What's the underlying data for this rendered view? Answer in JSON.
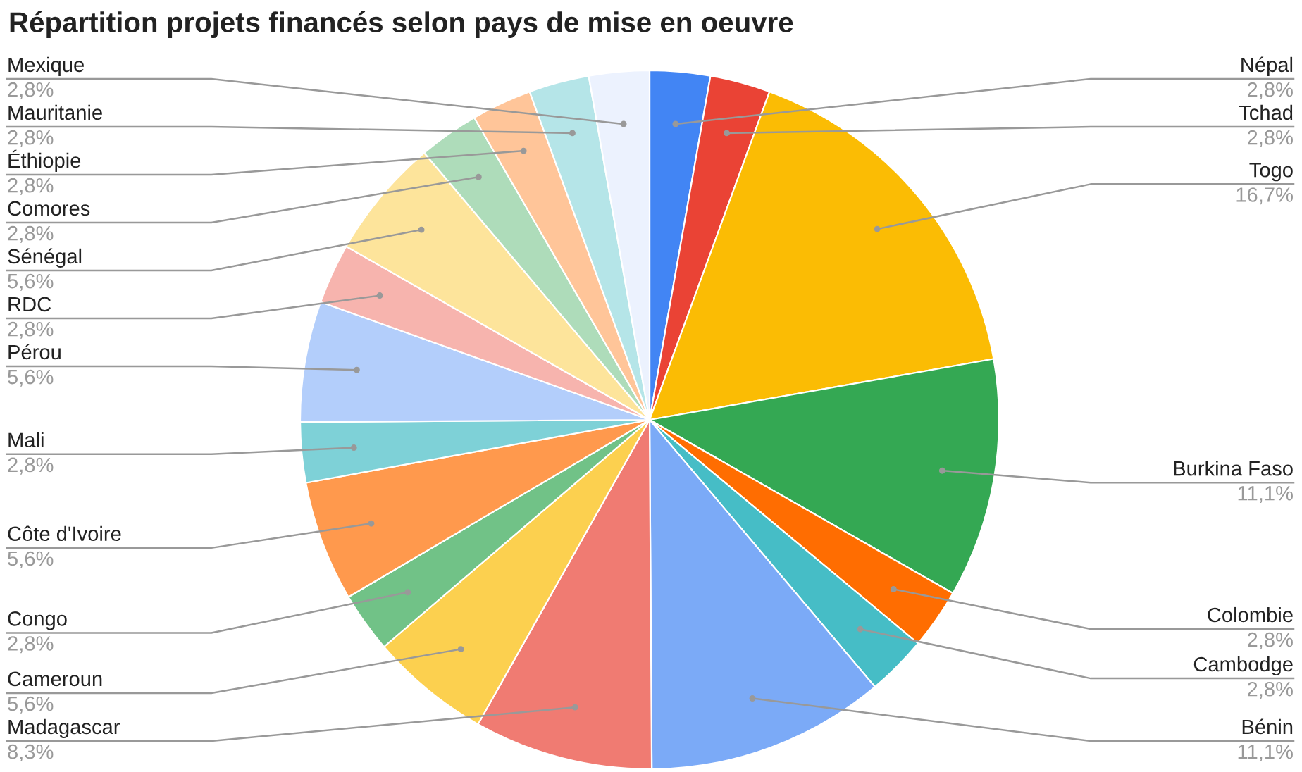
{
  "chart_data": {
    "type": "pie",
    "title": "Répartition projets financés selon pays de mise en oeuvre",
    "categories": [
      "Népal",
      "Tchad",
      "Togo",
      "Burkina Faso",
      "Colombie",
      "Cambodge",
      "Bénin",
      "Madagascar",
      "Cameroun",
      "Congo",
      "Côte d'Ivoire",
      "Mali",
      "Pérou",
      "RDC",
      "Sénégal",
      "Comores",
      "Éthiopie",
      "Mauritanie",
      "Mexique"
    ],
    "values": [
      2.8,
      2.8,
      16.7,
      11.1,
      2.8,
      2.8,
      11.1,
      8.3,
      5.6,
      2.8,
      5.6,
      2.8,
      5.6,
      2.8,
      5.6,
      2.8,
      2.8,
      2.8,
      2.8
    ],
    "value_labels": [
      "2,8%",
      "2,8%",
      "16,7%",
      "11,1%",
      "2,8%",
      "2,8%",
      "11,1%",
      "8,3%",
      "5,6%",
      "2,8%",
      "5,6%",
      "2,8%",
      "5,6%",
      "2,8%",
      "5,6%",
      "2,8%",
      "2,8%",
      "2,8%",
      "2,8%"
    ],
    "colors": [
      "#4285f4",
      "#ea4335",
      "#fbbc04",
      "#34a853",
      "#ff6d01",
      "#46bdc6",
      "#7baaf7",
      "#f07b72",
      "#fcd04f",
      "#71c287",
      "#ff994d",
      "#7ed1d7",
      "#b3cefb",
      "#f7b4ae",
      "#fde49b",
      "#aedcba",
      "#ffc599",
      "#b5e5e8",
      "#ecf2fe"
    ]
  }
}
